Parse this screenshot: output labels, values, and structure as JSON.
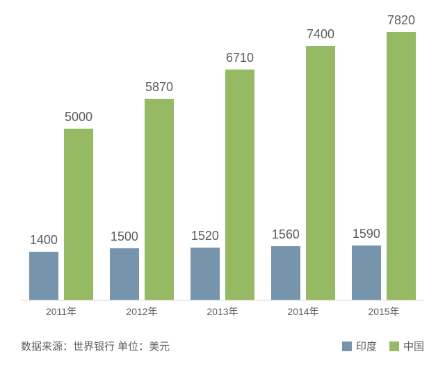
{
  "chart": {
    "type": "bar",
    "categories": [
      "2011年",
      "2012年",
      "2013年",
      "2014年",
      "2015年"
    ],
    "series": [
      {
        "name": "印度",
        "color": "#7695ac",
        "values": [
          1400,
          1500,
          1520,
          1560,
          1590
        ]
      },
      {
        "name": "中国",
        "color": "#96b964",
        "values": [
          5000,
          5870,
          6710,
          7400,
          7820
        ]
      }
    ],
    "ymax": 8400,
    "background_color": "#ffffff",
    "axis_line_color": "#d0d0d0",
    "label_color": "#5d5d5d",
    "value_label_fontsize": 18,
    "xlabel_fontsize": 14,
    "footer_fontsize": 15,
    "group_width_pct": 18,
    "group_gap_pct": 2,
    "bar_inner_width_pct": 40,
    "bar_inner_gap_pct": 8
  },
  "footer_text": "数据来源：世界银行 单位：美元"
}
